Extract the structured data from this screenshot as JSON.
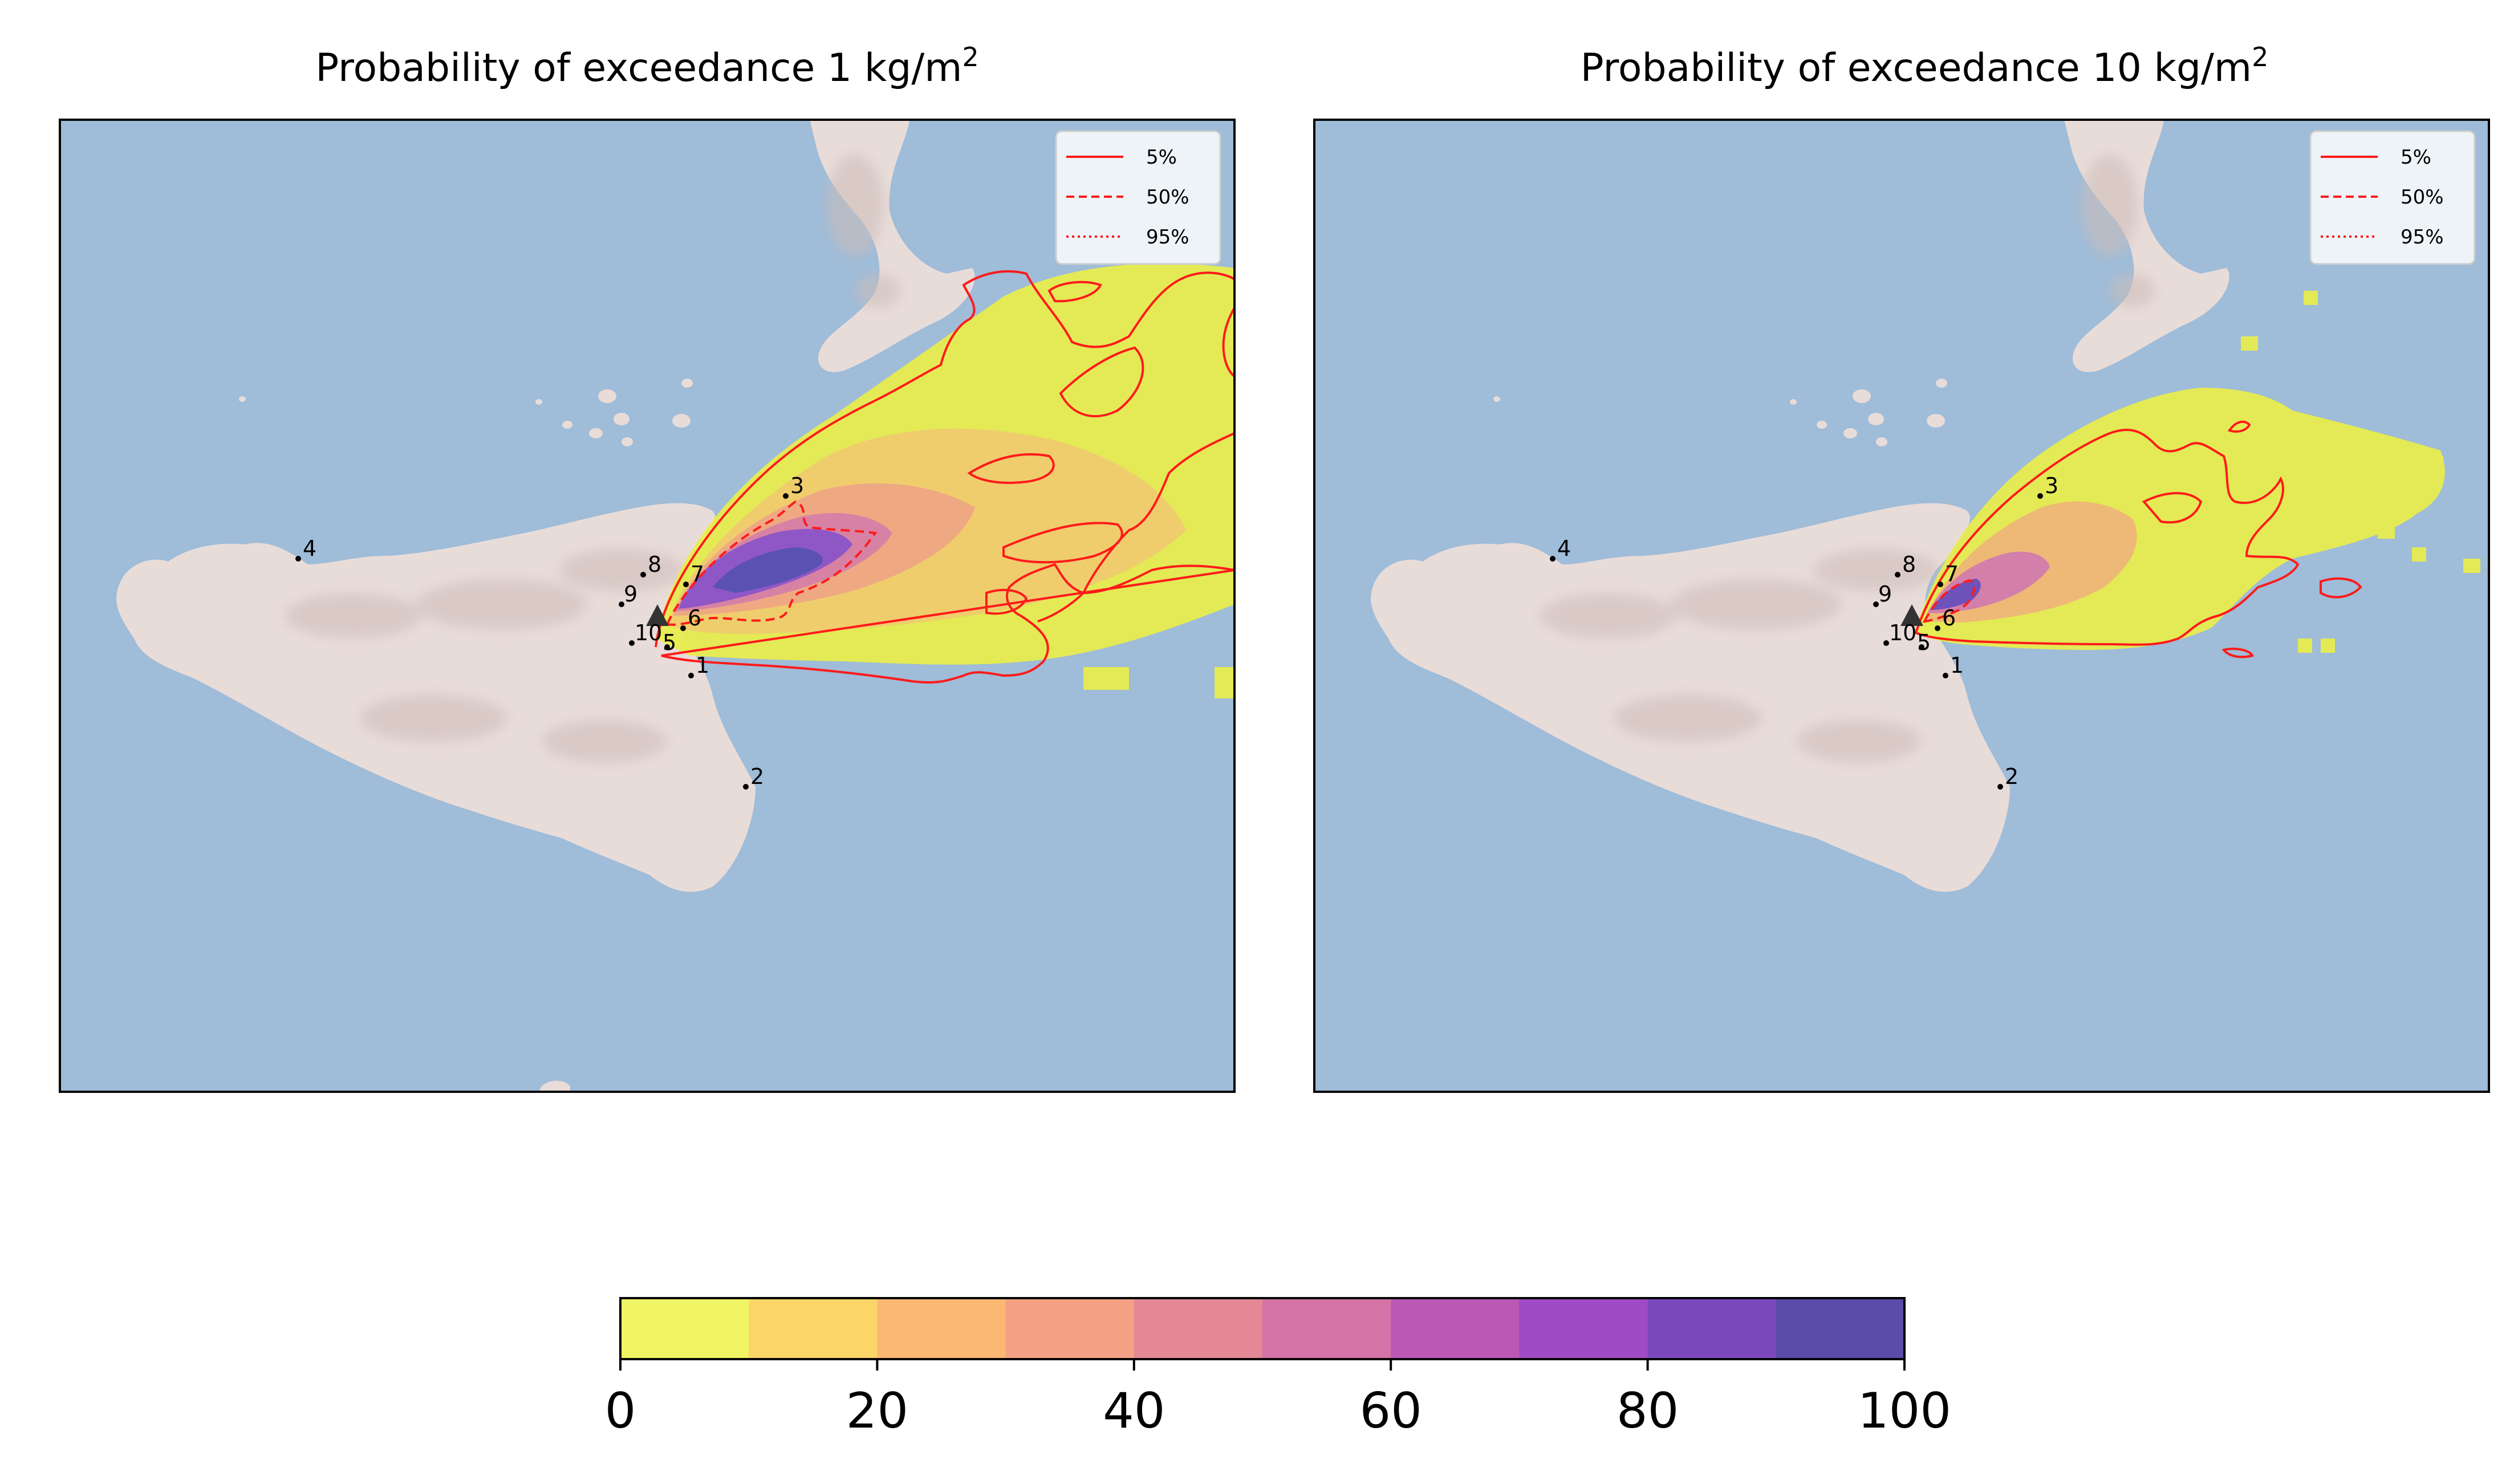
{
  "panels": [
    {
      "title": "Probability of exceedance 1 kg/m",
      "title_sup": "2",
      "legend": [
        {
          "label": "5%",
          "style": "solid"
        },
        {
          "label": "50%",
          "style": "dashed"
        },
        {
          "label": "95%",
          "style": "dotted"
        }
      ],
      "sites": [
        {
          "label": "1"
        },
        {
          "label": "2"
        },
        {
          "label": "3"
        },
        {
          "label": "4"
        },
        {
          "label": "5"
        },
        {
          "label": "6"
        },
        {
          "label": "7"
        },
        {
          "label": "8"
        },
        {
          "label": "9"
        },
        {
          "label": "10"
        }
      ]
    },
    {
      "title": "Probability of exceedance 10 kg/m",
      "title_sup": "2",
      "legend": [
        {
          "label": "5%",
          "style": "solid"
        },
        {
          "label": "50%",
          "style": "dashed"
        },
        {
          "label": "95%",
          "style": "dotted"
        }
      ],
      "sites": [
        {
          "label": "1"
        },
        {
          "label": "2"
        },
        {
          "label": "3"
        },
        {
          "label": "4"
        },
        {
          "label": "5"
        },
        {
          "label": "6"
        },
        {
          "label": "7"
        },
        {
          "label": "8"
        },
        {
          "label": "9"
        },
        {
          "label": "10"
        }
      ]
    }
  ],
  "colorbar": {
    "ticks": [
      "0",
      "20",
      "40",
      "60",
      "80",
      "100"
    ],
    "colors": [
      "#f1f465",
      "#fcd569",
      "#fbb872",
      "#f3a184",
      "#e48896",
      "#d274a6",
      "#bb58b6",
      "#9f4bc5",
      "#7c49bd",
      "#5a4ca8"
    ]
  },
  "colors": {
    "sea": "#9fbcd8",
    "land": "#e8dcd9",
    "land_shade": "#cdbcb8",
    "contour": "#ff1a1a",
    "vent": "#333333"
  }
}
